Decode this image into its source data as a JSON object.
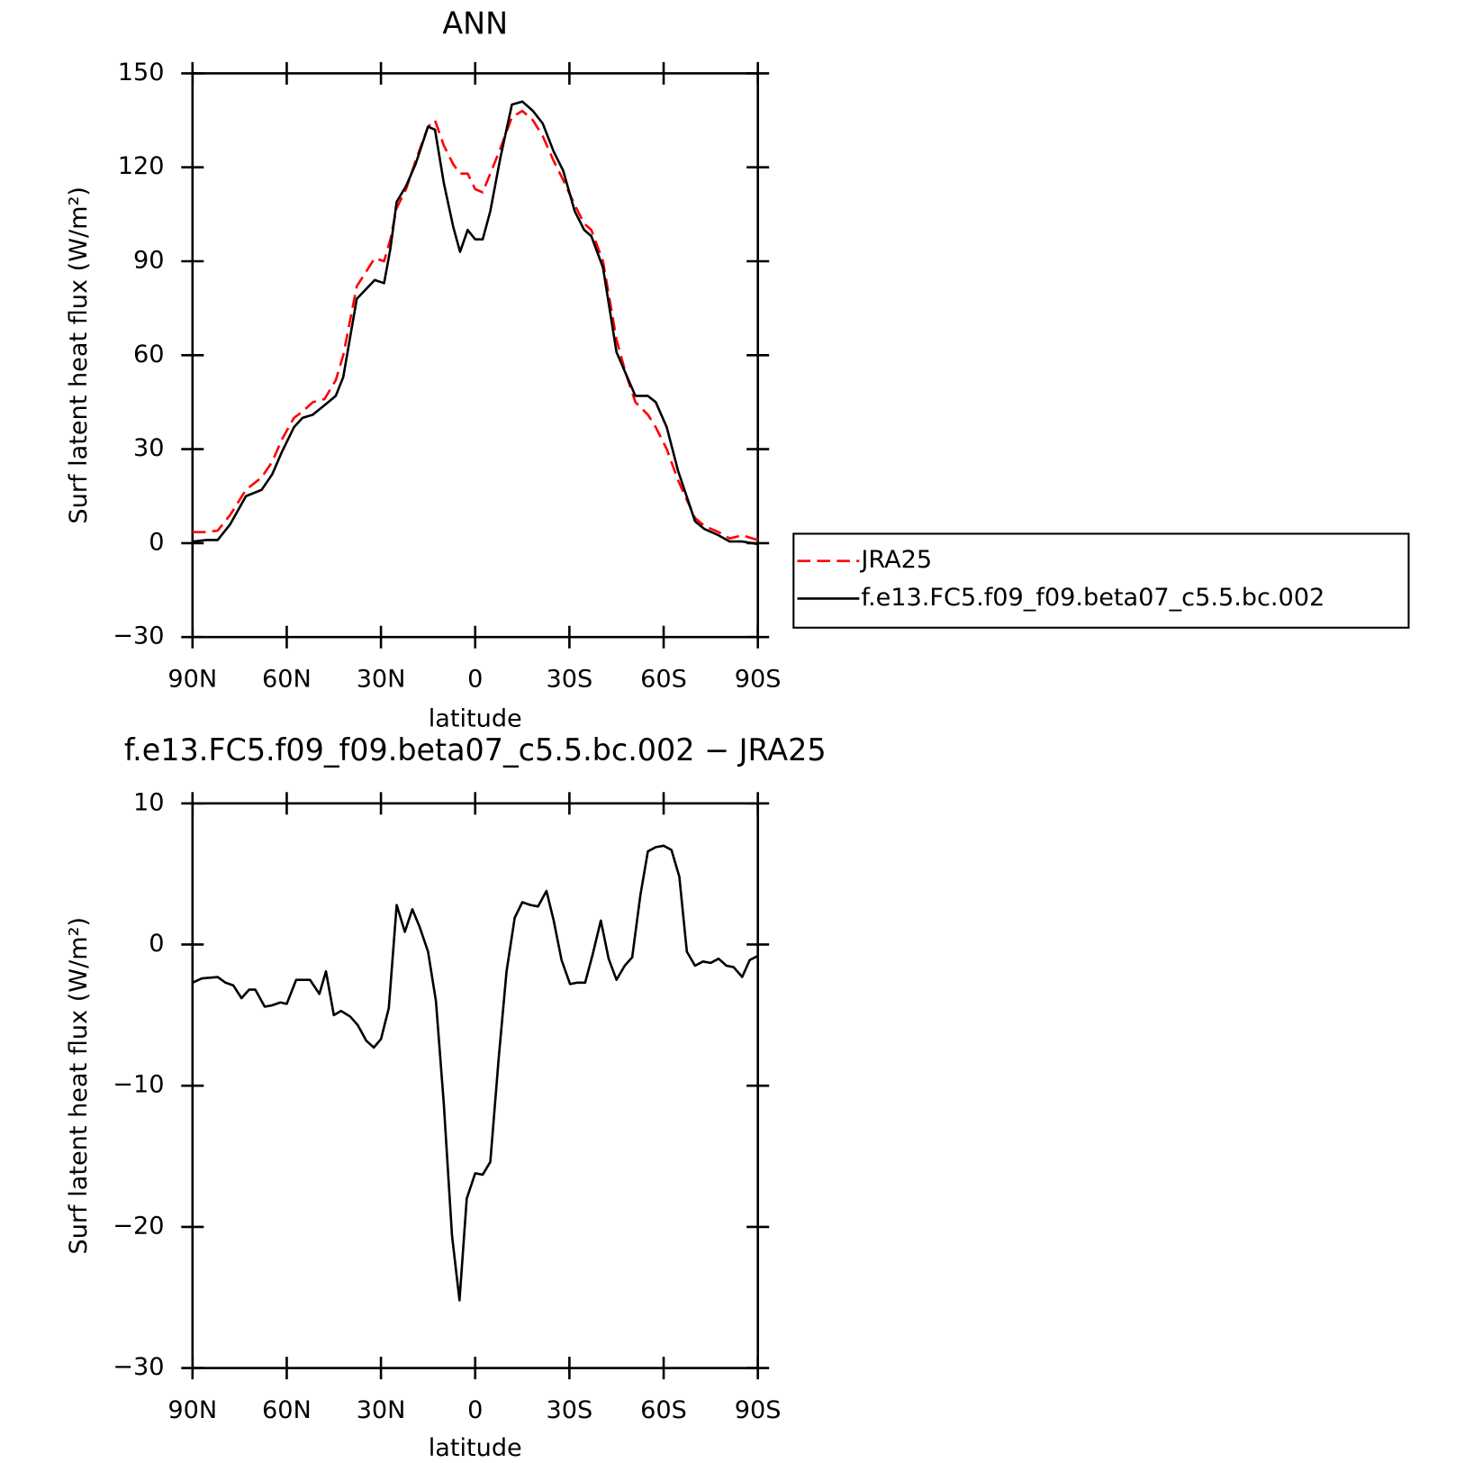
{
  "chart_data": [
    {
      "type": "line",
      "title": "ANN",
      "xlabel": "latitude",
      "ylabel": "Surf latent heat flux (W/m²)",
      "x": [
        90,
        85.5,
        82,
        78,
        73,
        68,
        64.6,
        61.6,
        57.7,
        55,
        51.7,
        48,
        44.4,
        42,
        37.7,
        32,
        29,
        27,
        25,
        22,
        19,
        15,
        12.8,
        10,
        7,
        4.8,
        2.4,
        0,
        -2.4,
        -4.8,
        -8,
        -11.7,
        -15,
        -18.4,
        -21.5,
        -25,
        -28,
        -31.7,
        -34.7,
        -37,
        -40.7,
        -45,
        -48,
        -51,
        -55,
        -57.5,
        -61,
        -64.6,
        -70,
        -73,
        -77.5,
        -81,
        -85,
        -90
      ],
      "xlim": [
        90,
        -90
      ],
      "xticks": [
        {
          "value": 90,
          "label": "90N"
        },
        {
          "value": 60,
          "label": "60N"
        },
        {
          "value": 30,
          "label": "30N"
        },
        0,
        {
          "value": -30,
          "label": "30S"
        },
        {
          "value": -60,
          "label": "60S"
        },
        {
          "value": -90,
          "label": "90S"
        }
      ],
      "ylim": [
        -30,
        150
      ],
      "yticks": [
        {
          "value": -30,
          "label": "−30"
        },
        0,
        30,
        60,
        90,
        120,
        150
      ],
      "legend": "right",
      "series": [
        {
          "name": "JRA25",
          "color": "#ff0000",
          "dash": true,
          "values": [
            3.5,
            3.5,
            4,
            9,
            17,
            21,
            26,
            33,
            40,
            42,
            45,
            46,
            52,
            60,
            82,
            91,
            90,
            97,
            107,
            113,
            122,
            133,
            135,
            127,
            121,
            118,
            118,
            113,
            112,
            118,
            126,
            136,
            138,
            135,
            130,
            122,
            116,
            108,
            102,
            100,
            90,
            65,
            54,
            45,
            41,
            37,
            30,
            20,
            8,
            5.5,
            3.5,
            1.5,
            2.5,
            1
          ]
        },
        {
          "name": "f.e13.FC5.f09_f09.beta07_c5.5.bc.002",
          "color": "#000000",
          "dash": false,
          "values": [
            0.5,
            1,
            1,
            6,
            15,
            17,
            22,
            29,
            37,
            40,
            41,
            44,
            47,
            53,
            78,
            84,
            83,
            94,
            109,
            114,
            121,
            133,
            132,
            115,
            101,
            93,
            100,
            97,
            97,
            106,
            123,
            140,
            141,
            138,
            134,
            125,
            119,
            106,
            100,
            98,
            88,
            61,
            54,
            47,
            47,
            45,
            37,
            23,
            7,
            4.5,
            2.5,
            0.5,
            0.5,
            -0.3
          ]
        }
      ]
    },
    {
      "type": "line",
      "title": "f.e13.FC5.f09_f09.beta07_c5.5.bc.002 − JRA25",
      "xlabel": "latitude",
      "ylabel": "Surf latent heat flux (W/m²)",
      "x": [
        90,
        87,
        82,
        79.5,
        77,
        74.4,
        72,
        70,
        67,
        64.6,
        62,
        60,
        57,
        52.6,
        49.6,
        47.5,
        45,
        42.7,
        39.8,
        37.4,
        34.7,
        32.3,
        30,
        27.5,
        25,
        22.4,
        20,
        17.6,
        15,
        12.5,
        10,
        7.4,
        5,
        2.7,
        0,
        -2.4,
        -4.8,
        -7.5,
        -10,
        -12.6,
        -15,
        -17.6,
        -20,
        -22.7,
        -25,
        -27.5,
        -30.2,
        -32.6,
        -35,
        -37.4,
        -40,
        -42.5,
        -45,
        -47.6,
        -50,
        -52.6,
        -55,
        -57.5,
        -60,
        -62.5,
        -65,
        -67.4,
        -70,
        -72.5,
        -75,
        -77.5,
        -80,
        -82.3,
        -85,
        -87.4,
        -90
      ],
      "xlim": [
        90,
        -90
      ],
      "xticks": [
        {
          "value": 90,
          "label": "90N"
        },
        {
          "value": 60,
          "label": "60N"
        },
        {
          "value": 30,
          "label": "30N"
        },
        0,
        {
          "value": -30,
          "label": "30S"
        },
        {
          "value": -60,
          "label": "60S"
        },
        {
          "value": -90,
          "label": "90S"
        }
      ],
      "ylim": [
        -30,
        10
      ],
      "yticks": [
        {
          "value": -30,
          "label": "−30"
        },
        {
          "value": -20,
          "label": "−20"
        },
        {
          "value": -10,
          "label": "−10"
        },
        0,
        10
      ],
      "series": [
        {
          "color": "#000000",
          "dash": false,
          "values": [
            -2.7,
            -2.4,
            -2.3,
            -2.7,
            -2.9,
            -3.8,
            -3.2,
            -3.2,
            -4.4,
            -4.3,
            -4.1,
            -4.2,
            -2.5,
            -2.5,
            -3.5,
            -1.9,
            -5.0,
            -4.7,
            -5.1,
            -5.7,
            -6.8,
            -7.3,
            -6.7,
            -4.5,
            2.8,
            0.9,
            2.5,
            1.2,
            -0.5,
            -4.0,
            -11.3,
            -20.6,
            -25.2,
            -18,
            -16.2,
            -16.3,
            -15.4,
            -8,
            -1.9,
            1.9,
            3.0,
            2.8,
            2.7,
            3.8,
            1.7,
            -1.1,
            -2.8,
            -2.7,
            -2.7,
            -0.7,
            1.7,
            -1.0,
            -2.5,
            -1.5,
            -0.9,
            3.5,
            6.6,
            6.9,
            7.0,
            6.7,
            4.8,
            -0.5,
            -1.5,
            -1.2,
            -1.3,
            -1.0,
            -1.5,
            -1.6,
            -2.3,
            -1.1,
            -0.8
          ]
        }
      ]
    }
  ]
}
